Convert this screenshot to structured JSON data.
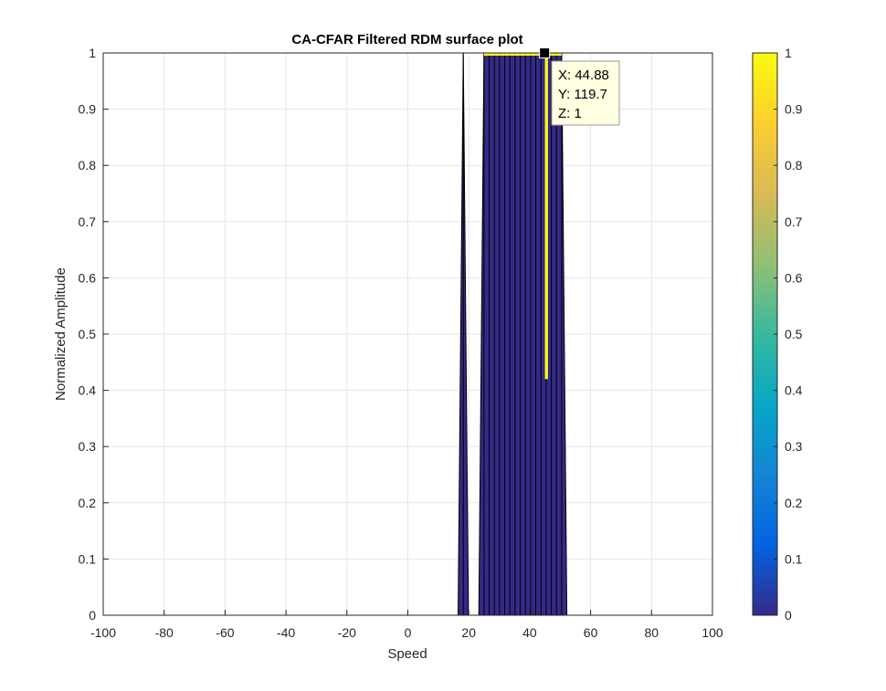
{
  "chart_data": {
    "type": "area",
    "title": "CA-CFAR Filtered RDM surface plot",
    "xlabel": "Speed",
    "ylabel": "Normalized Amplitude",
    "xlim": [
      -100,
      100
    ],
    "ylim": [
      0,
      1
    ],
    "xticks": [
      "-100",
      "-80",
      "-60",
      "-40",
      "-20",
      "0",
      "20",
      "40",
      "60",
      "80",
      "100"
    ],
    "yticks": [
      "0",
      "0.1",
      "0.2",
      "0.3",
      "0.4",
      "0.5",
      "0.6",
      "0.7",
      "0.8",
      "0.9",
      "1"
    ],
    "grid": true,
    "view": "side view of surface (Speed vs amplitude)",
    "series": [
      {
        "x": [
          -100,
          16.5,
          18.2,
          19.9,
          21.6,
          23.3,
          25.0,
          26.7,
          28.4,
          30.1,
          31.8,
          33.5,
          35.2,
          36.9,
          38.6,
          40.3,
          42.0,
          43.7,
          45.4,
          47.1,
          48.8,
          50.5,
          52.2,
          100
        ],
        "y": [
          0,
          0,
          1,
          0,
          0,
          0,
          1,
          1,
          1,
          1,
          1,
          1,
          1,
          1,
          1,
          1,
          1,
          1,
          1,
          1,
          1,
          1,
          0,
          0
        ]
      }
    ],
    "highlight_strip_x": [
      45.0,
      46.0
    ],
    "colorbar": {
      "range": [
        0,
        1
      ],
      "ticks": [
        "0",
        "0.1",
        "0.2",
        "0.3",
        "0.4",
        "0.5",
        "0.6",
        "0.7",
        "0.8",
        "0.9",
        "1"
      ],
      "colormap": "parula",
      "stops": [
        "#352a87",
        "#0363e1",
        "#1485d4",
        "#06a7c6",
        "#38b99e",
        "#92bf73",
        "#d9ba56",
        "#fcce2e",
        "#f9fb0e"
      ]
    },
    "datatip": {
      "marker_x": 44.88,
      "marker_z": 1,
      "lines": [
        "X: 44.88",
        "Y: 119.7",
        "Z: 1"
      ]
    },
    "colors": {
      "surface_low": "#352a87",
      "surface_high": "#f9fb0e",
      "tip_background": "#ffffe1",
      "grid": "#e6e6e6"
    }
  }
}
